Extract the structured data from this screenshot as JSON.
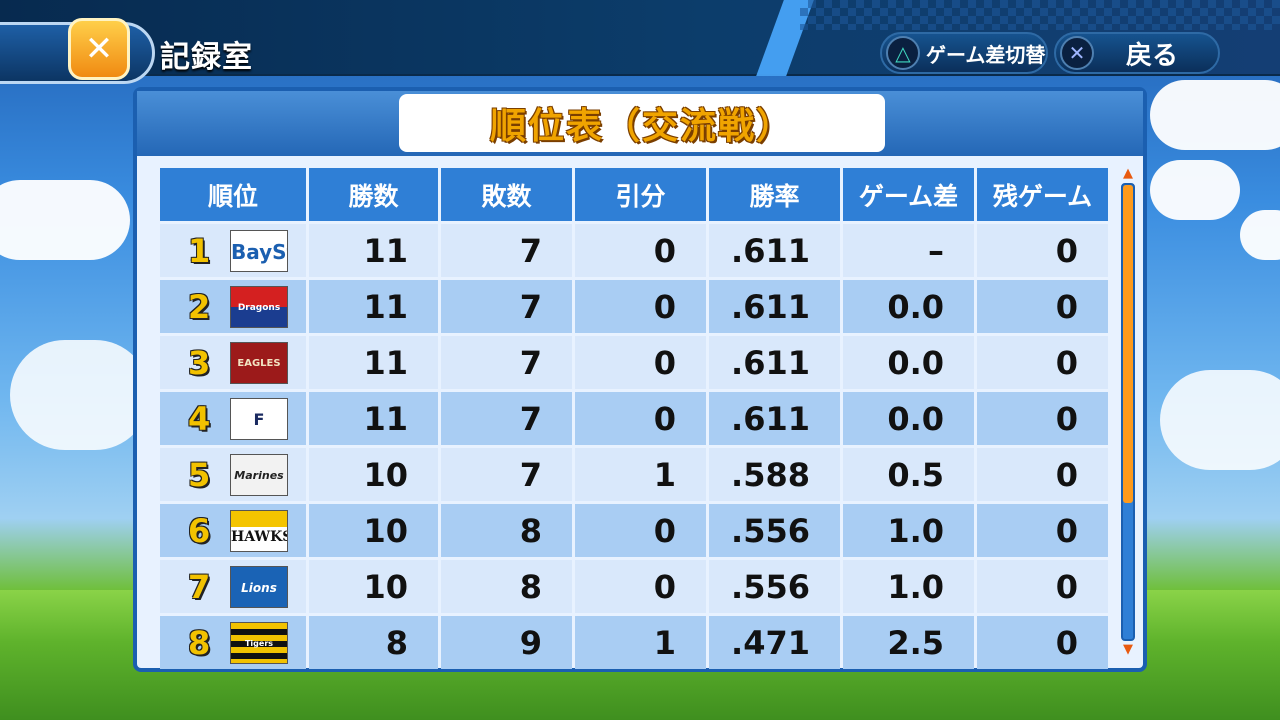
{
  "header": {
    "title": "記録室",
    "hint_toggle_label": "ゲーム差切替",
    "hint_back_label": "戻る"
  },
  "standings": {
    "title": "順位表（交流戦）",
    "columns": [
      "順位",
      "勝数",
      "敗数",
      "引分",
      "勝率",
      "ゲーム差",
      "残ゲーム"
    ],
    "rows": [
      {
        "rank": "1",
        "team_logo": "BayStars",
        "wins": "11",
        "losses": "7",
        "draws": "0",
        "pct": ".611",
        "gb": "–",
        "remaining": "0"
      },
      {
        "rank": "2",
        "team_logo": "Dragons",
        "wins": "11",
        "losses": "7",
        "draws": "0",
        "pct": ".611",
        "gb": "0.0",
        "remaining": "0"
      },
      {
        "rank": "3",
        "team_logo": "EAGLES",
        "wins": "11",
        "losses": "7",
        "draws": "0",
        "pct": ".611",
        "gb": "0.0",
        "remaining": "0"
      },
      {
        "rank": "4",
        "team_logo": "F",
        "wins": "11",
        "losses": "7",
        "draws": "0",
        "pct": ".611",
        "gb": "0.0",
        "remaining": "0"
      },
      {
        "rank": "5",
        "team_logo": "Marines",
        "wins": "10",
        "losses": "7",
        "draws": "1",
        "pct": ".588",
        "gb": "0.5",
        "remaining": "0"
      },
      {
        "rank": "6",
        "team_logo": "HAWKS",
        "wins": "10",
        "losses": "8",
        "draws": "0",
        "pct": ".556",
        "gb": "1.0",
        "remaining": "0"
      },
      {
        "rank": "7",
        "team_logo": "Lions",
        "wins": "10",
        "losses": "8",
        "draws": "0",
        "pct": ".556",
        "gb": "1.0",
        "remaining": "0"
      },
      {
        "rank": "8",
        "team_logo": "Tigers",
        "wins": "8",
        "losses": "9",
        "draws": "1",
        "pct": ".471",
        "gb": "2.5",
        "remaining": "0"
      }
    ]
  },
  "scrollbar": {
    "visible_fraction": 0.7,
    "thumb_color": "#ff9a1a"
  }
}
